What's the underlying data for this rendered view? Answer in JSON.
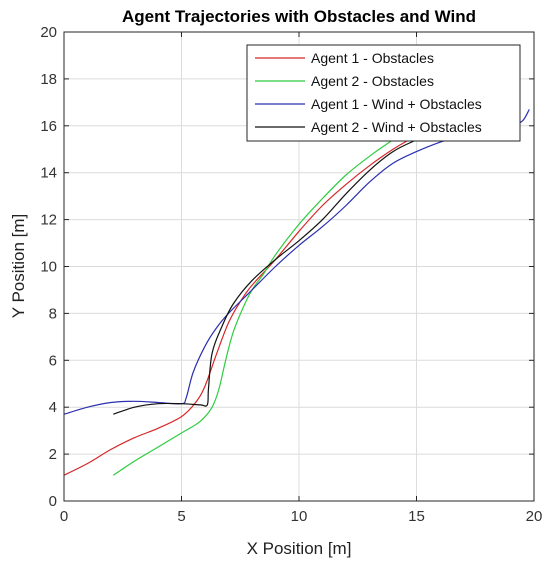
{
  "chart_data": {
    "type": "line",
    "title": "Agent Trajectories with Obstacles and Wind",
    "xlabel": "X Position [m]",
    "ylabel": "Y Position [m]",
    "xlim": [
      0,
      20
    ],
    "ylim": [
      0,
      20
    ],
    "xticks": [
      0,
      5,
      10,
      15,
      20
    ],
    "yticks": [
      0,
      2,
      4,
      6,
      8,
      10,
      12,
      14,
      16,
      18,
      20
    ],
    "grid": true,
    "legend_position": "top-right",
    "series": [
      {
        "name": "Agent 1 - Obstacles",
        "color": "#d62728",
        "points": [
          [
            0.0,
            1.1
          ],
          [
            1.0,
            1.6
          ],
          [
            2.0,
            2.2
          ],
          [
            3.0,
            2.7
          ],
          [
            4.0,
            3.1
          ],
          [
            5.0,
            3.6
          ],
          [
            5.6,
            4.2
          ],
          [
            6.0,
            4.9
          ],
          [
            6.5,
            6.3
          ],
          [
            7.0,
            7.6
          ],
          [
            7.5,
            8.5
          ],
          [
            8.0,
            9.2
          ],
          [
            9.0,
            10.3
          ],
          [
            10.0,
            11.5
          ],
          [
            11.0,
            12.6
          ],
          [
            12.0,
            13.5
          ],
          [
            13.0,
            14.3
          ],
          [
            14.0,
            15.0
          ],
          [
            15.0,
            15.6
          ],
          [
            16.0,
            16.3
          ],
          [
            17.0,
            17.0
          ],
          [
            18.0,
            17.9
          ],
          [
            18.8,
            18.8
          ],
          [
            19.2,
            19.1
          ]
        ]
      },
      {
        "name": "Agent 2 - Obstacles",
        "color": "#2ecc40",
        "points": [
          [
            2.1,
            1.1
          ],
          [
            3.0,
            1.7
          ],
          [
            4.0,
            2.3
          ],
          [
            5.0,
            2.9
          ],
          [
            5.8,
            3.4
          ],
          [
            6.3,
            4.0
          ],
          [
            6.6,
            4.8
          ],
          [
            6.9,
            6.1
          ],
          [
            7.2,
            7.2
          ],
          [
            7.6,
            8.2
          ],
          [
            8.0,
            9.0
          ],
          [
            8.5,
            9.7
          ],
          [
            9.0,
            10.5
          ],
          [
            10.0,
            11.8
          ],
          [
            11.0,
            12.9
          ],
          [
            12.0,
            13.9
          ],
          [
            13.0,
            14.7
          ],
          [
            14.0,
            15.4
          ],
          [
            15.0,
            16.0
          ],
          [
            16.0,
            16.4
          ],
          [
            17.0,
            16.8
          ]
        ]
      },
      {
        "name": "Agent 1 - Wind + Obstacles",
        "color": "#2b2fb0",
        "points": [
          [
            0.0,
            3.7
          ],
          [
            1.0,
            4.0
          ],
          [
            2.0,
            4.2
          ],
          [
            3.0,
            4.25
          ],
          [
            4.0,
            4.2
          ],
          [
            5.0,
            4.15
          ],
          [
            5.2,
            4.4
          ],
          [
            5.5,
            5.5
          ],
          [
            6.0,
            6.6
          ],
          [
            6.5,
            7.4
          ],
          [
            7.0,
            8.0
          ],
          [
            8.0,
            9.0
          ],
          [
            9.0,
            10.0
          ],
          [
            10.0,
            10.9
          ],
          [
            11.0,
            11.7
          ],
          [
            12.0,
            12.6
          ],
          [
            13.0,
            13.6
          ],
          [
            14.0,
            14.4
          ],
          [
            15.0,
            14.9
          ],
          [
            16.0,
            15.3
          ],
          [
            17.0,
            15.6
          ],
          [
            18.0,
            15.9
          ],
          [
            19.0,
            16.0
          ],
          [
            19.5,
            16.2
          ],
          [
            19.8,
            16.7
          ]
        ]
      },
      {
        "name": "Agent 2 - Wind + Obstacles",
        "color": "#111111",
        "points": [
          [
            2.1,
            3.7
          ],
          [
            3.0,
            4.0
          ],
          [
            4.0,
            4.15
          ],
          [
            5.0,
            4.15
          ],
          [
            5.8,
            4.1
          ],
          [
            6.1,
            4.1
          ],
          [
            6.15,
            4.8
          ],
          [
            6.3,
            6.3
          ],
          [
            6.7,
            7.4
          ],
          [
            7.2,
            8.4
          ],
          [
            8.0,
            9.4
          ],
          [
            9.0,
            10.3
          ],
          [
            10.0,
            11.1
          ],
          [
            11.0,
            12.0
          ],
          [
            12.0,
            13.1
          ],
          [
            13.0,
            14.1
          ],
          [
            14.0,
            14.9
          ],
          [
            15.0,
            15.4
          ],
          [
            16.0,
            15.8
          ],
          [
            17.0,
            16.2
          ],
          [
            18.0,
            16.4
          ],
          [
            19.0,
            16.8
          ],
          [
            19.0,
            19.1
          ]
        ]
      }
    ]
  }
}
